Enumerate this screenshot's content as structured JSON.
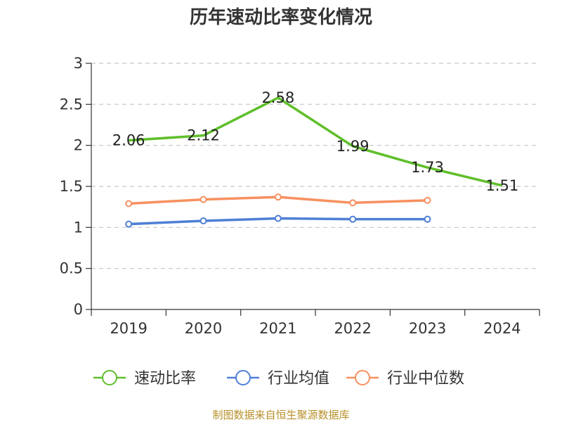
{
  "chart_data": {
    "type": "line",
    "title": "历年速动比率变化情况",
    "categories": [
      "2019",
      "2020",
      "2021",
      "2022",
      "2023",
      "2024"
    ],
    "ylim": [
      0,
      3
    ],
    "y_ticks": [
      "0",
      "0.5",
      "1",
      "1.5",
      "2",
      "2.5",
      "3"
    ],
    "grid": true,
    "legend_position": "bottom",
    "series": [
      {
        "name": "速动比率",
        "color": "#5fbf2a",
        "values": [
          2.06,
          2.12,
          2.58,
          1.99,
          1.73,
          1.51
        ],
        "labels": [
          "2.06",
          "2.12",
          "2.58",
          "1.99",
          "1.73",
          "1.51"
        ]
      },
      {
        "name": "行业均值",
        "color": "#4f7fd6",
        "values": [
          1.04,
          1.08,
          1.11,
          1.1,
          1.1,
          null
        ]
      },
      {
        "name": "行业中位数",
        "color": "#f79060",
        "values": [
          1.29,
          1.34,
          1.37,
          1.3,
          1.33,
          null
        ]
      }
    ]
  },
  "source_text": "制图数据来自恒生聚源数据库"
}
